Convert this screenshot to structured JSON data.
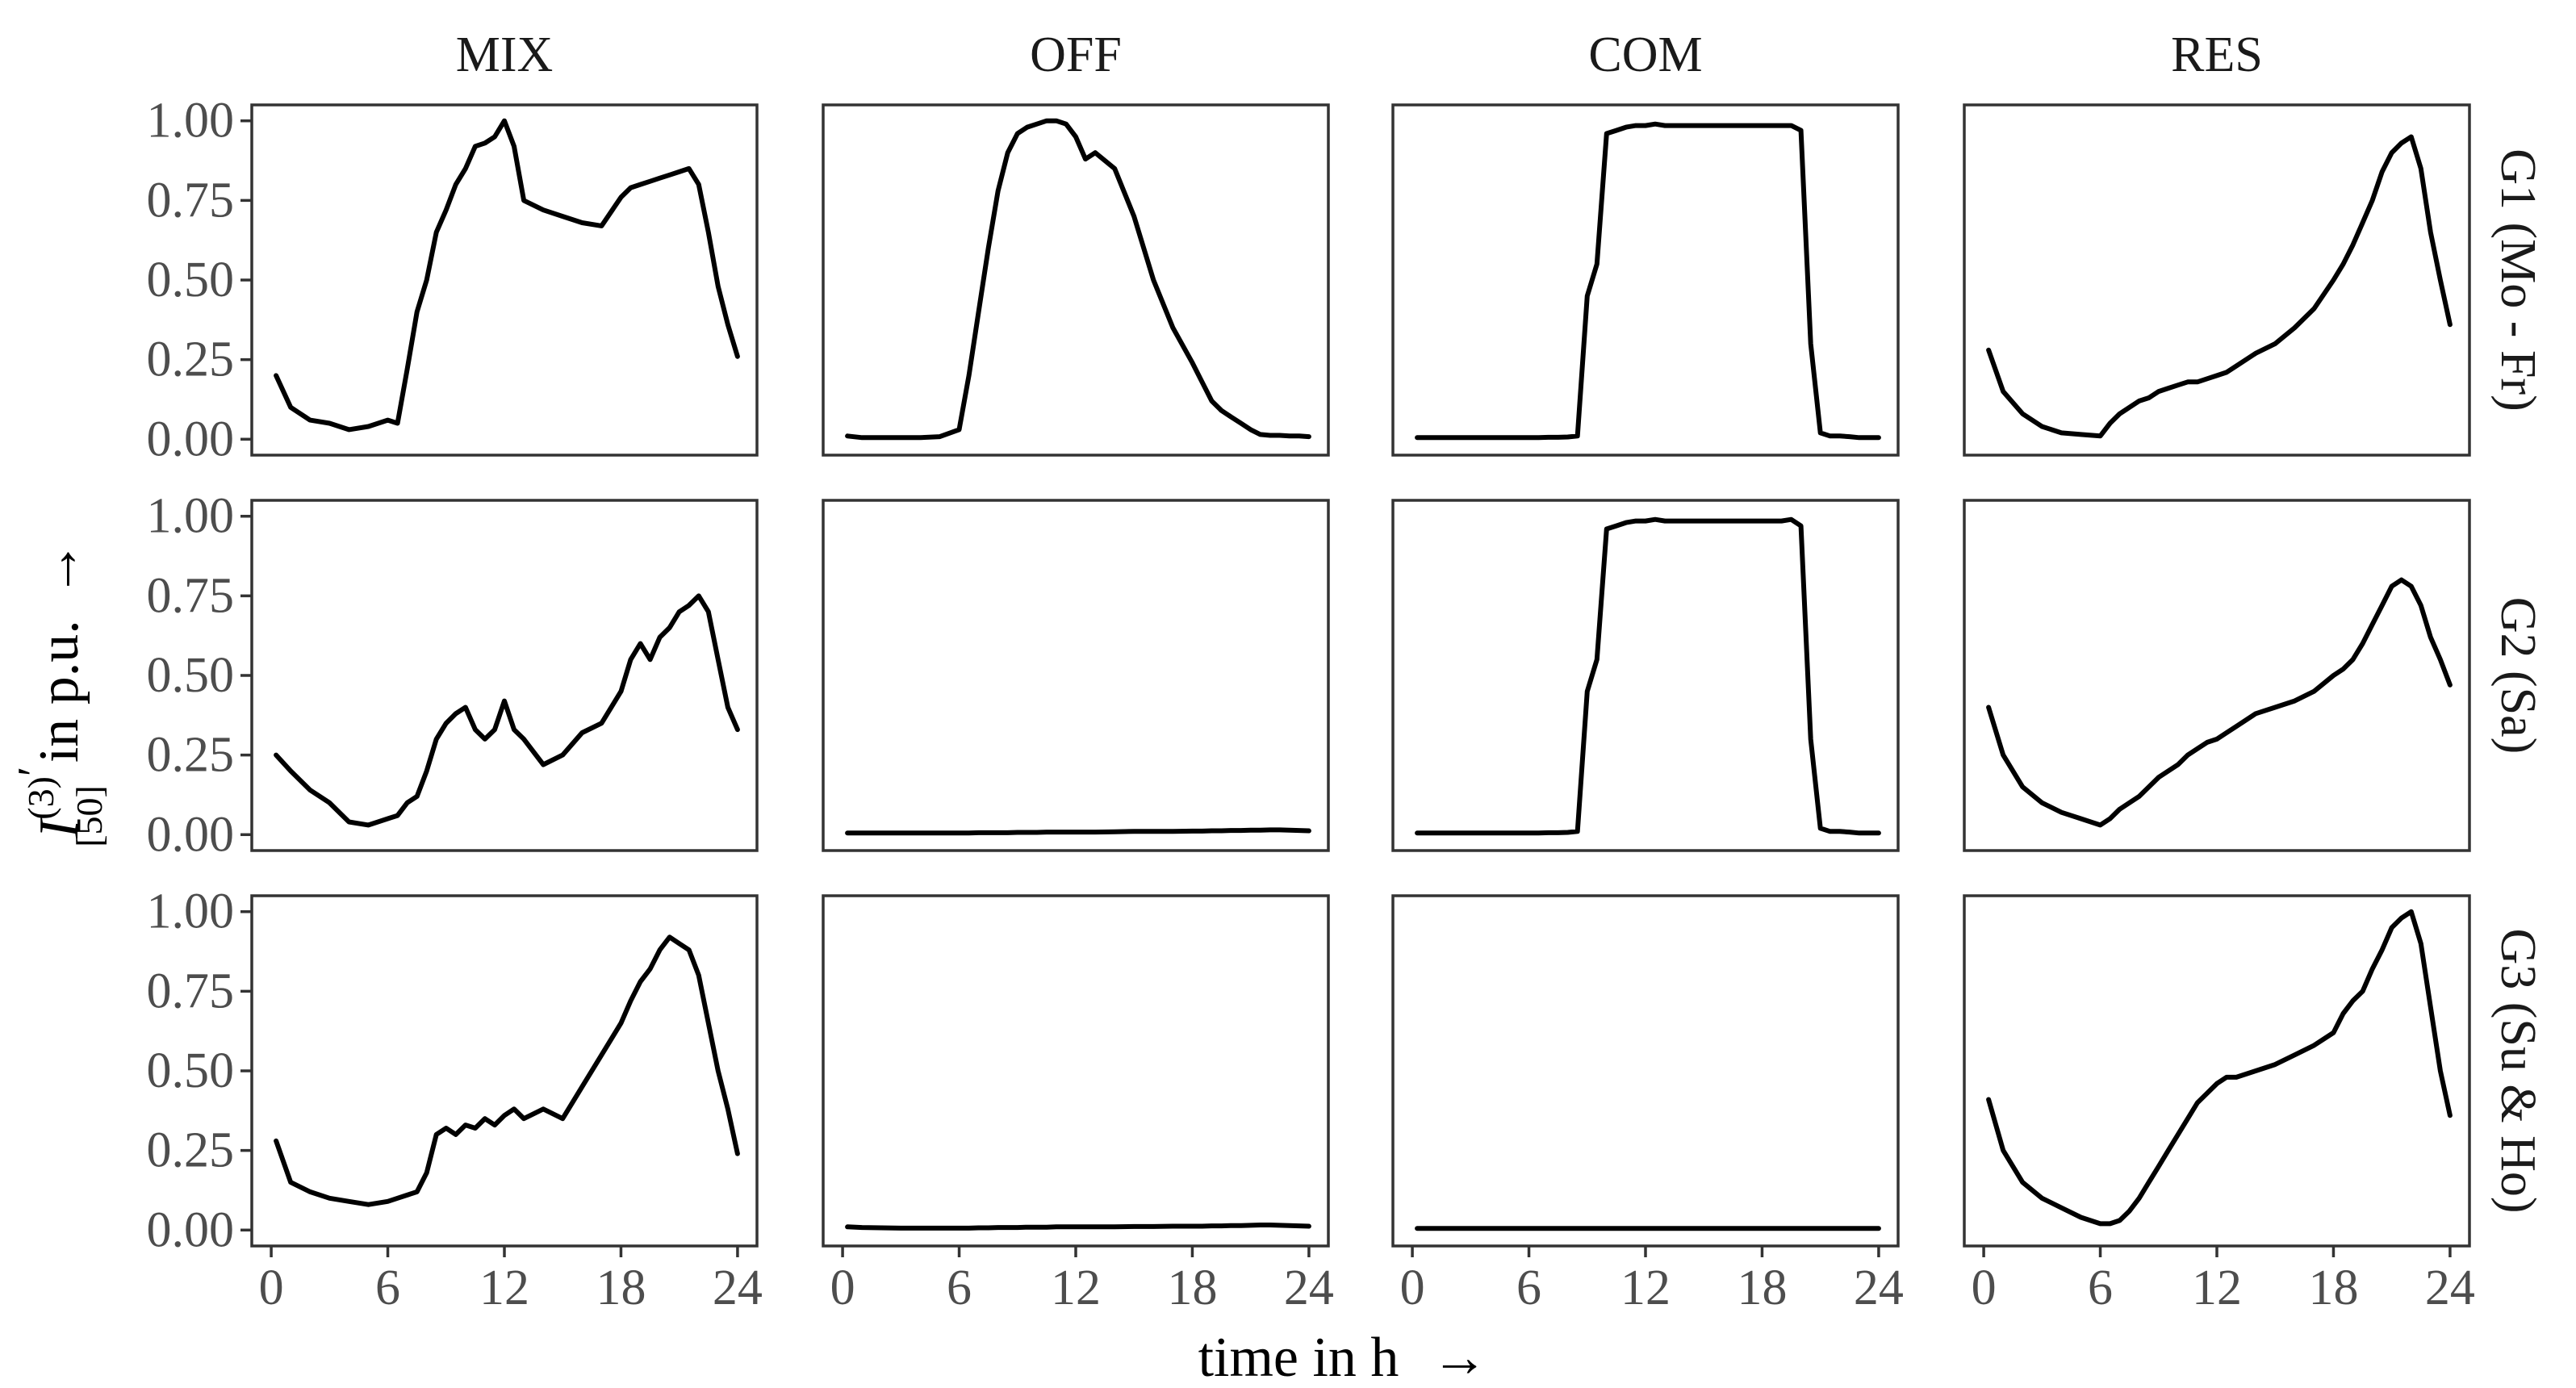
{
  "chart_data": {
    "type": "line",
    "layout": "facet-grid 3 rows x 4 columns",
    "xlabel": "time in h",
    "x_arrow": "→",
    "ylabel": {
      "base": "I",
      "superscript": "(3)",
      "prime": "′",
      "subscript": "[50]",
      "suffix": "in p.u.",
      "arrow": "→"
    },
    "xlim": [
      -1,
      25
    ],
    "ylim": [
      -0.05,
      1.05
    ],
    "x_ticks": [
      0,
      6,
      12,
      18,
      24
    ],
    "x_tick_labels": [
      "0",
      "6",
      "12",
      "18",
      "24"
    ],
    "y_ticks": [
      0,
      0.25,
      0.5,
      0.75,
      1
    ],
    "y_tick_labels": [
      "0.00",
      "0.25",
      "0.50",
      "0.75",
      "1.00"
    ],
    "columns": [
      "MIX",
      "OFF",
      "COM",
      "RES"
    ],
    "rows": [
      "G1 (Mo - Fr)",
      "G2 (Sa)",
      "G3 (Su & Ho)"
    ],
    "grid": false,
    "x": [
      0.25,
      1,
      2,
      3,
      4,
      5,
      6,
      6.5,
      7,
      7.5,
      8,
      8.5,
      9,
      9.5,
      10,
      10.5,
      11,
      11.5,
      12,
      12.5,
      13,
      14,
      15,
      16,
      17,
      18,
      18.5,
      19,
      19.5,
      20,
      20.5,
      21,
      21.5,
      22,
      22.5,
      23,
      23.5,
      24
    ],
    "series": [
      {
        "row": "G1 (Mo - Fr)",
        "column": "MIX",
        "values": [
          0.2,
          0.1,
          0.06,
          0.05,
          0.03,
          0.04,
          0.06,
          0.05,
          0.22,
          0.4,
          0.5,
          0.65,
          0.72,
          0.8,
          0.85,
          0.92,
          0.93,
          0.95,
          1.0,
          0.92,
          0.75,
          0.72,
          0.7,
          0.68,
          0.67,
          0.76,
          0.79,
          0.8,
          0.81,
          0.82,
          0.83,
          0.84,
          0.85,
          0.8,
          0.65,
          0.48,
          0.36,
          0.26
        ]
      },
      {
        "row": "G1 (Mo - Fr)",
        "column": "OFF",
        "values": [
          0.01,
          0.005,
          0.005,
          0.005,
          0.005,
          0.008,
          0.03,
          0.2,
          0.4,
          0.6,
          0.78,
          0.9,
          0.96,
          0.98,
          0.99,
          1.0,
          1.0,
          0.99,
          0.95,
          0.88,
          0.9,
          0.85,
          0.7,
          0.5,
          0.35,
          0.24,
          0.18,
          0.12,
          0.09,
          0.07,
          0.05,
          0.03,
          0.015,
          0.012,
          0.012,
          0.01,
          0.01,
          0.008
        ]
      },
      {
        "row": "G1 (Mo - Fr)",
        "column": "COM",
        "values": [
          0.005,
          0.005,
          0.005,
          0.005,
          0.005,
          0.005,
          0.005,
          0.005,
          0.006,
          0.006,
          0.007,
          0.01,
          0.45,
          0.55,
          0.96,
          0.97,
          0.98,
          0.985,
          0.985,
          0.99,
          0.985,
          0.985,
          0.985,
          0.985,
          0.985,
          0.985,
          0.985,
          0.985,
          0.985,
          0.97,
          0.3,
          0.02,
          0.01,
          0.01,
          0.008,
          0.005,
          0.005,
          0.005
        ]
      },
      {
        "row": "G1 (Mo - Fr)",
        "column": "RES",
        "values": [
          0.28,
          0.15,
          0.08,
          0.04,
          0.02,
          0.015,
          0.01,
          0.05,
          0.08,
          0.1,
          0.12,
          0.13,
          0.15,
          0.16,
          0.17,
          0.18,
          0.18,
          0.19,
          0.2,
          0.21,
          0.23,
          0.27,
          0.3,
          0.35,
          0.41,
          0.5,
          0.55,
          0.61,
          0.68,
          0.75,
          0.84,
          0.9,
          0.93,
          0.95,
          0.85,
          0.65,
          0.5,
          0.36
        ]
      },
      {
        "row": "G2 (Sa)",
        "column": "MIX",
        "values": [
          0.25,
          0.2,
          0.14,
          0.1,
          0.04,
          0.03,
          0.05,
          0.06,
          0.1,
          0.12,
          0.2,
          0.3,
          0.35,
          0.38,
          0.4,
          0.33,
          0.3,
          0.33,
          0.42,
          0.33,
          0.3,
          0.22,
          0.25,
          0.32,
          0.35,
          0.45,
          0.55,
          0.6,
          0.55,
          0.62,
          0.65,
          0.7,
          0.72,
          0.75,
          0.7,
          0.55,
          0.4,
          0.33
        ]
      },
      {
        "row": "G2 (Sa)",
        "column": "OFF",
        "values": [
          0.005,
          0.005,
          0.005,
          0.005,
          0.005,
          0.005,
          0.005,
          0.005,
          0.006,
          0.006,
          0.006,
          0.006,
          0.007,
          0.007,
          0.007,
          0.008,
          0.008,
          0.008,
          0.008,
          0.008,
          0.008,
          0.009,
          0.01,
          0.01,
          0.01,
          0.011,
          0.011,
          0.012,
          0.012,
          0.013,
          0.013,
          0.014,
          0.014,
          0.015,
          0.015,
          0.014,
          0.013,
          0.012
        ]
      },
      {
        "row": "G2 (Sa)",
        "column": "COM",
        "values": [
          0.005,
          0.005,
          0.005,
          0.005,
          0.005,
          0.005,
          0.005,
          0.005,
          0.006,
          0.006,
          0.007,
          0.01,
          0.45,
          0.55,
          0.96,
          0.97,
          0.98,
          0.985,
          0.985,
          0.99,
          0.985,
          0.985,
          0.985,
          0.985,
          0.985,
          0.985,
          0.985,
          0.985,
          0.99,
          0.97,
          0.3,
          0.02,
          0.01,
          0.01,
          0.008,
          0.005,
          0.005,
          0.005
        ]
      },
      {
        "row": "G2 (Sa)",
        "column": "RES",
        "values": [
          0.4,
          0.25,
          0.15,
          0.1,
          0.07,
          0.05,
          0.03,
          0.05,
          0.08,
          0.1,
          0.12,
          0.15,
          0.18,
          0.2,
          0.22,
          0.25,
          0.27,
          0.29,
          0.3,
          0.32,
          0.34,
          0.38,
          0.4,
          0.42,
          0.45,
          0.5,
          0.52,
          0.55,
          0.6,
          0.66,
          0.72,
          0.78,
          0.8,
          0.78,
          0.72,
          0.62,
          0.55,
          0.47
        ]
      },
      {
        "row": "G3 (Su & Ho)",
        "column": "MIX",
        "values": [
          0.28,
          0.15,
          0.12,
          0.1,
          0.09,
          0.08,
          0.09,
          0.1,
          0.11,
          0.12,
          0.18,
          0.3,
          0.32,
          0.3,
          0.33,
          0.32,
          0.35,
          0.33,
          0.36,
          0.38,
          0.35,
          0.38,
          0.35,
          0.45,
          0.55,
          0.65,
          0.72,
          0.78,
          0.82,
          0.88,
          0.92,
          0.9,
          0.88,
          0.8,
          0.65,
          0.5,
          0.38,
          0.24
        ]
      },
      {
        "row": "G3 (Su & Ho)",
        "column": "OFF",
        "values": [
          0.01,
          0.008,
          0.007,
          0.006,
          0.006,
          0.006,
          0.006,
          0.006,
          0.007,
          0.007,
          0.008,
          0.008,
          0.008,
          0.009,
          0.009,
          0.009,
          0.01,
          0.01,
          0.01,
          0.01,
          0.01,
          0.01,
          0.011,
          0.011,
          0.012,
          0.012,
          0.012,
          0.013,
          0.013,
          0.014,
          0.014,
          0.015,
          0.016,
          0.016,
          0.015,
          0.014,
          0.013,
          0.012
        ]
      },
      {
        "row": "G3 (Su & Ho)",
        "column": "COM",
        "values": [
          0.005,
          0.005,
          0.005,
          0.005,
          0.005,
          0.005,
          0.005,
          0.005,
          0.005,
          0.005,
          0.005,
          0.005,
          0.005,
          0.005,
          0.005,
          0.005,
          0.005,
          0.005,
          0.005,
          0.005,
          0.005,
          0.005,
          0.005,
          0.005,
          0.005,
          0.005,
          0.005,
          0.005,
          0.005,
          0.005,
          0.005,
          0.005,
          0.005,
          0.005,
          0.005,
          0.005,
          0.005,
          0.005
        ]
      },
      {
        "row": "G3 (Su & Ho)",
        "column": "RES",
        "values": [
          0.41,
          0.25,
          0.15,
          0.1,
          0.07,
          0.04,
          0.02,
          0.02,
          0.03,
          0.06,
          0.1,
          0.15,
          0.2,
          0.25,
          0.3,
          0.35,
          0.4,
          0.43,
          0.46,
          0.48,
          0.48,
          0.5,
          0.52,
          0.55,
          0.58,
          0.62,
          0.68,
          0.72,
          0.75,
          0.82,
          0.88,
          0.95,
          0.98,
          1.0,
          0.9,
          0.7,
          0.5,
          0.36
        ]
      }
    ]
  }
}
